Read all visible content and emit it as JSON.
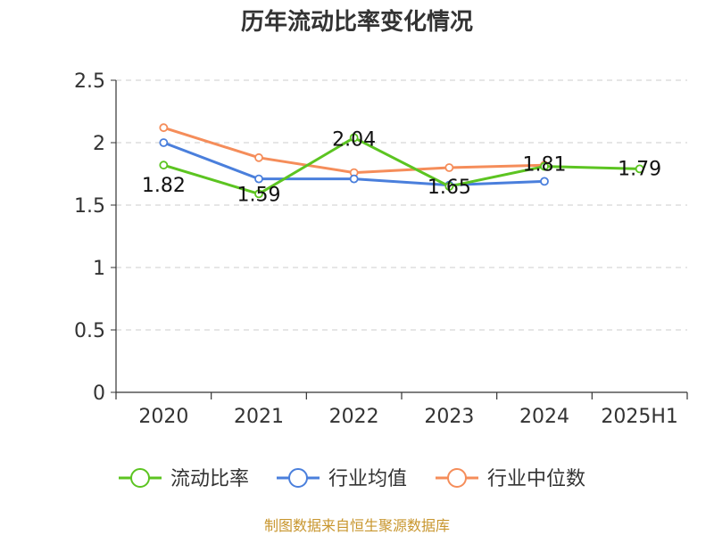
{
  "chart_data": {
    "type": "line",
    "title": "历年流动比率变化情况",
    "categories": [
      "2020",
      "2021",
      "2022",
      "2023",
      "2024",
      "2025H1"
    ],
    "y_ticks": [
      "0",
      "0.5",
      "1",
      "1.5",
      "2",
      "2.5"
    ],
    "ylim": [
      0,
      2.5
    ],
    "grid": true,
    "legend_position": "bottom",
    "series": [
      {
        "name": "流动比率",
        "color": "#5cc421",
        "values": [
          1.82,
          1.59,
          2.04,
          1.65,
          1.81,
          1.79
        ],
        "labels": [
          "1.82",
          "1.59",
          "2.04",
          "1.65",
          "1.81",
          "1.79"
        ]
      },
      {
        "name": "行业均值",
        "color": "#4a7fdc",
        "values": [
          2.0,
          1.71,
          1.71,
          1.66,
          1.69,
          null
        ]
      },
      {
        "name": "行业中位数",
        "color": "#f58d5a",
        "values": [
          2.12,
          1.88,
          1.76,
          1.8,
          1.82,
          null
        ]
      }
    ]
  },
  "footer": "制图数据来自恒生聚源数据库"
}
